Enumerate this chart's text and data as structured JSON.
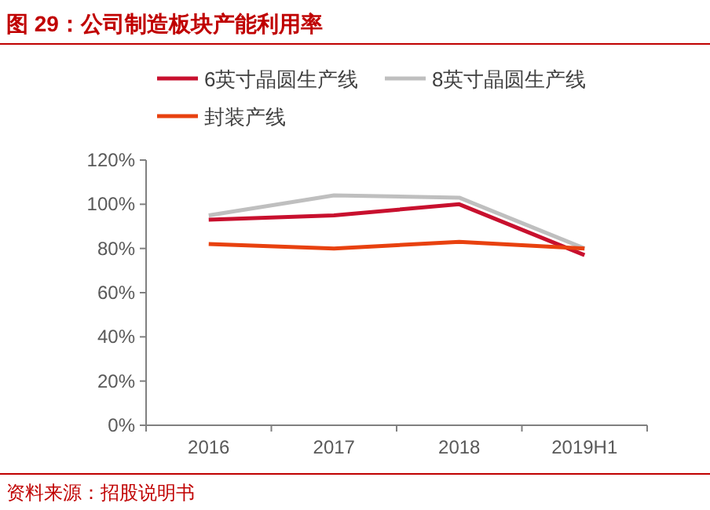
{
  "chart_data": {
    "type": "line",
    "title": "图 29：公司制造板块产能利用率",
    "categories": [
      "2016",
      "2017",
      "2018",
      "2019H1"
    ],
    "series": [
      {
        "name": "6英寸晶圆生产线",
        "color": "#c8102e",
        "values": [
          93,
          95,
          100,
          77
        ]
      },
      {
        "name": "8英寸晶圆生产线",
        "color": "#bfbfbf",
        "values": [
          95,
          104,
          103,
          80
        ]
      },
      {
        "name": "封装产线",
        "color": "#e8410f",
        "values": [
          82,
          80,
          83,
          80
        ]
      }
    ],
    "ylim": [
      0,
      120
    ],
    "yticks": [
      {
        "value": 0,
        "label": "0%"
      },
      {
        "value": 20,
        "label": "20%"
      },
      {
        "value": 40,
        "label": "40%"
      },
      {
        "value": 60,
        "label": "60%"
      },
      {
        "value": 80,
        "label": "80%"
      },
      {
        "value": 100,
        "label": "100%"
      },
      {
        "value": 120,
        "label": "120%"
      }
    ],
    "legend": "top",
    "grid": false,
    "marker": "none",
    "line_style": "solid",
    "annotations": [
      "资料来源：招股说明书"
    ]
  }
}
